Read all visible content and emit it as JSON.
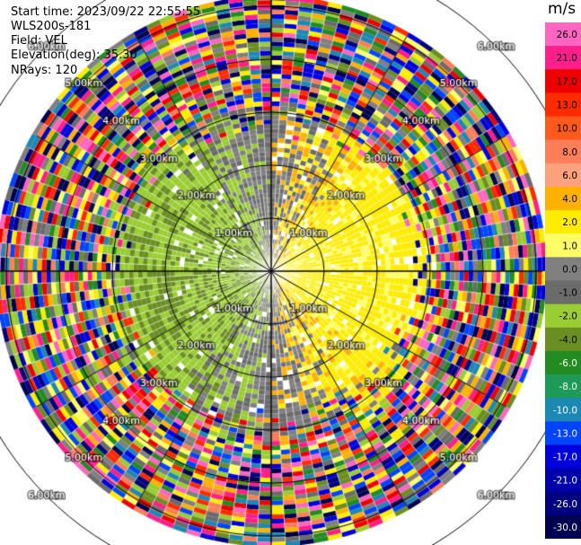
{
  "header": {
    "start_time": "Start time: 2023/09/22 22:55:55",
    "site": "WLS200s-181",
    "field": "Field: VEL",
    "elevation": "Elevation(deg): 35.30",
    "nrays": "NRays: 120"
  },
  "colorbar": {
    "unit": "m/s",
    "ticks": [
      "26.0",
      "21.0",
      "17.0",
      "13.0",
      "10.0",
      "8.0",
      "6.0",
      "4.0",
      "2.0",
      "1.0",
      "0.0",
      "-1.0",
      "-2.0",
      "-4.0",
      "-6.0",
      "-8.0",
      "-10.0",
      "-13.0",
      "-17.0",
      "-21.0",
      "-26.0",
      "-30.0"
    ],
    "colors": [
      "#ff66c2",
      "#ff1f8b",
      "#ee0000",
      "#ff2b00",
      "#ff5a1e",
      "#ff7e5a",
      "#ffa17d",
      "#ffb100",
      "#ffec00",
      "#ffff66",
      "#808080",
      "#6b6b6b",
      "#9acd32",
      "#6b8e23",
      "#228b22",
      "#1e9a58",
      "#1e88b4",
      "#0044ff",
      "#0000dd",
      "#0000aa",
      "#000080",
      "#000050"
    ]
  },
  "rings": {
    "labels": [
      "1.00km",
      "2.00km",
      "3.00km",
      "4.00km",
      "5.00km",
      "6.00km"
    ]
  },
  "chart_data": {
    "type": "heatmap",
    "projection": "PPI (polar)",
    "field": "VEL",
    "unit": "m/s",
    "nrays": 120,
    "elevation_deg": 35.3,
    "range_rings_km": [
      1,
      2,
      3,
      4,
      5,
      6
    ],
    "color_scale_ticks": [
      26.0,
      21.0,
      17.0,
      13.0,
      10.0,
      8.0,
      6.0,
      4.0,
      2.0,
      1.0,
      0.0,
      -1.0,
      -2.0,
      -4.0,
      -6.0,
      -8.0,
      -10.0,
      -13.0,
      -17.0,
      -21.0,
      -26.0,
      -30.0
    ],
    "pattern": "positive velocity (yellow, ~2 m/s) to the east within ~3 km, negative velocity (green, ~-2 m/s) to the west; near-zero (gray) elsewhere inside ~3 km; noisy multicolor returns beyond ~3 km"
  }
}
